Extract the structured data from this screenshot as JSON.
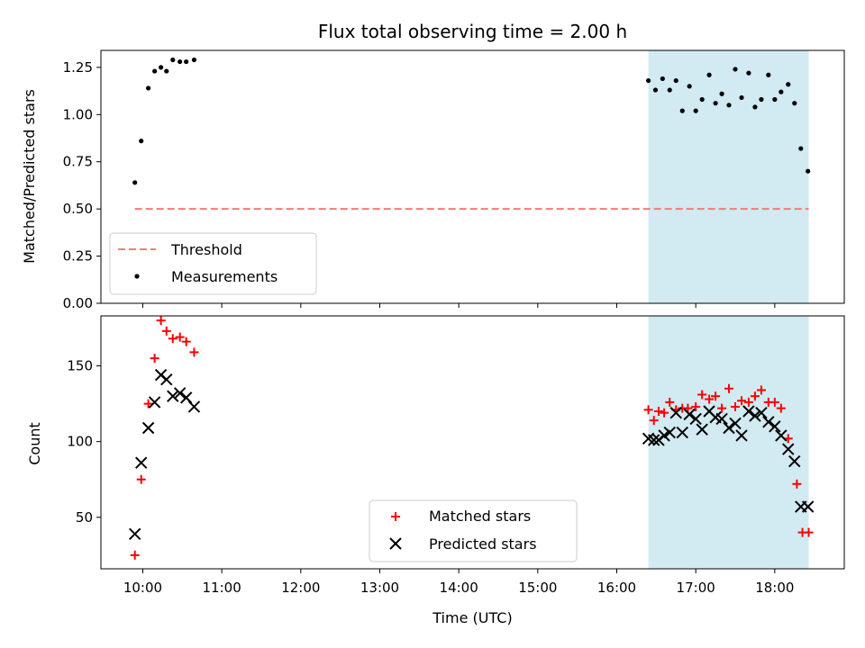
{
  "chart_data": [
    {
      "type": "scatter",
      "title": "Flux total observing time = 2.00 h",
      "xlabel": "",
      "ylabel": "Matched/Predicted stars",
      "xlim_hours": [
        9.47,
        18.88
      ],
      "ylim": [
        0,
        1.34
      ],
      "yticks": [
        0.0,
        0.25,
        0.5,
        0.75,
        1.0,
        1.25
      ],
      "ytick_labels": [
        "0.00",
        "0.25",
        "0.50",
        "0.75",
        "1.00",
        "1.25"
      ],
      "shaded_span_hours": [
        16.4,
        18.43
      ],
      "shade_color": "#add8e6",
      "legend_position": "lower-left",
      "threshold": {
        "name": "Threshold",
        "y": 0.5,
        "x_hours": [
          9.9,
          18.43
        ],
        "color": "#ff7777",
        "style": "dashed"
      },
      "series": [
        {
          "name": "Measurements",
          "color": "#000000",
          "x_hours": [
            9.9,
            9.98,
            10.07,
            10.15,
            10.23,
            10.3,
            10.38,
            10.47,
            10.55,
            10.65,
            16.4,
            16.49,
            16.58,
            16.67,
            16.75,
            16.83,
            16.92,
            17.0,
            17.08,
            17.17,
            17.25,
            17.33,
            17.42,
            17.5,
            17.58,
            17.67,
            17.75,
            17.83,
            17.92,
            18.0,
            18.08,
            18.17,
            18.25,
            18.33,
            18.42
          ],
          "y": [
            0.64,
            0.86,
            1.14,
            1.23,
            1.25,
            1.23,
            1.29,
            1.28,
            1.28,
            1.29,
            1.18,
            1.13,
            1.19,
            1.13,
            1.18,
            1.02,
            1.15,
            1.02,
            1.08,
            1.21,
            1.06,
            1.11,
            1.05,
            1.24,
            1.09,
            1.22,
            1.04,
            1.08,
            1.21,
            1.08,
            1.12,
            1.16,
            1.06,
            0.82,
            0.7
          ]
        }
      ]
    },
    {
      "type": "scatter",
      "title": "",
      "xlabel": "Time (UTC)",
      "ylabel": "Count",
      "xlim_hours": [
        9.47,
        18.88
      ],
      "ylim": [
        16,
        183
      ],
      "yticks": [
        50,
        100,
        150
      ],
      "ytick_labels": [
        "50",
        "100",
        "150"
      ],
      "xticks_hours": [
        10,
        11,
        12,
        13,
        14,
        15,
        16,
        17,
        18
      ],
      "xtick_labels": [
        "10:00",
        "11:00",
        "12:00",
        "13:00",
        "14:00",
        "15:00",
        "16:00",
        "17:00",
        "18:00"
      ],
      "shaded_span_hours": [
        16.4,
        18.43
      ],
      "shade_color": "#add8e6",
      "legend_position": "lower-center",
      "series": [
        {
          "name": "Matched stars",
          "marker": "plus",
          "color": "#ff0000",
          "x_hours": [
            9.9,
            9.98,
            10.07,
            10.15,
            10.23,
            10.3,
            10.38,
            10.47,
            10.55,
            10.65,
            16.4,
            16.47,
            16.53,
            16.6,
            16.67,
            16.75,
            16.83,
            16.9,
            17.0,
            17.08,
            17.17,
            17.25,
            17.33,
            17.42,
            17.5,
            17.58,
            17.67,
            17.75,
            17.83,
            17.92,
            18.0,
            18.08,
            18.17,
            18.28,
            18.35,
            18.43
          ],
          "y": [
            25,
            75,
            125,
            155,
            180,
            173,
            168,
            169,
            166,
            159,
            121,
            114,
            120,
            119,
            126,
            121,
            122,
            122,
            123,
            131,
            128,
            130,
            122,
            135,
            123,
            127,
            126,
            130,
            134,
            126,
            126,
            122,
            102,
            72,
            40,
            40
          ]
        },
        {
          "name": "Predicted stars",
          "marker": "x",
          "color": "#000000",
          "x_hours": [
            9.9,
            9.98,
            10.07,
            10.15,
            10.23,
            10.3,
            10.38,
            10.47,
            10.55,
            10.65,
            16.4,
            16.47,
            16.53,
            16.6,
            16.67,
            16.75,
            16.83,
            16.92,
            17.0,
            17.08,
            17.17,
            17.25,
            17.33,
            17.42,
            17.5,
            17.58,
            17.67,
            17.75,
            17.83,
            17.92,
            18.0,
            18.08,
            18.17,
            18.25,
            18.33,
            18.42
          ],
          "y": [
            39,
            86,
            109,
            126,
            144,
            141,
            130,
            132,
            129,
            123,
            102,
            101,
            101,
            104,
            106,
            119,
            106,
            118,
            115,
            108,
            120,
            116,
            115,
            109,
            112,
            104,
            120,
            117,
            119,
            113,
            110,
            104,
            95,
            87,
            57,
            57
          ]
        }
      ]
    }
  ]
}
